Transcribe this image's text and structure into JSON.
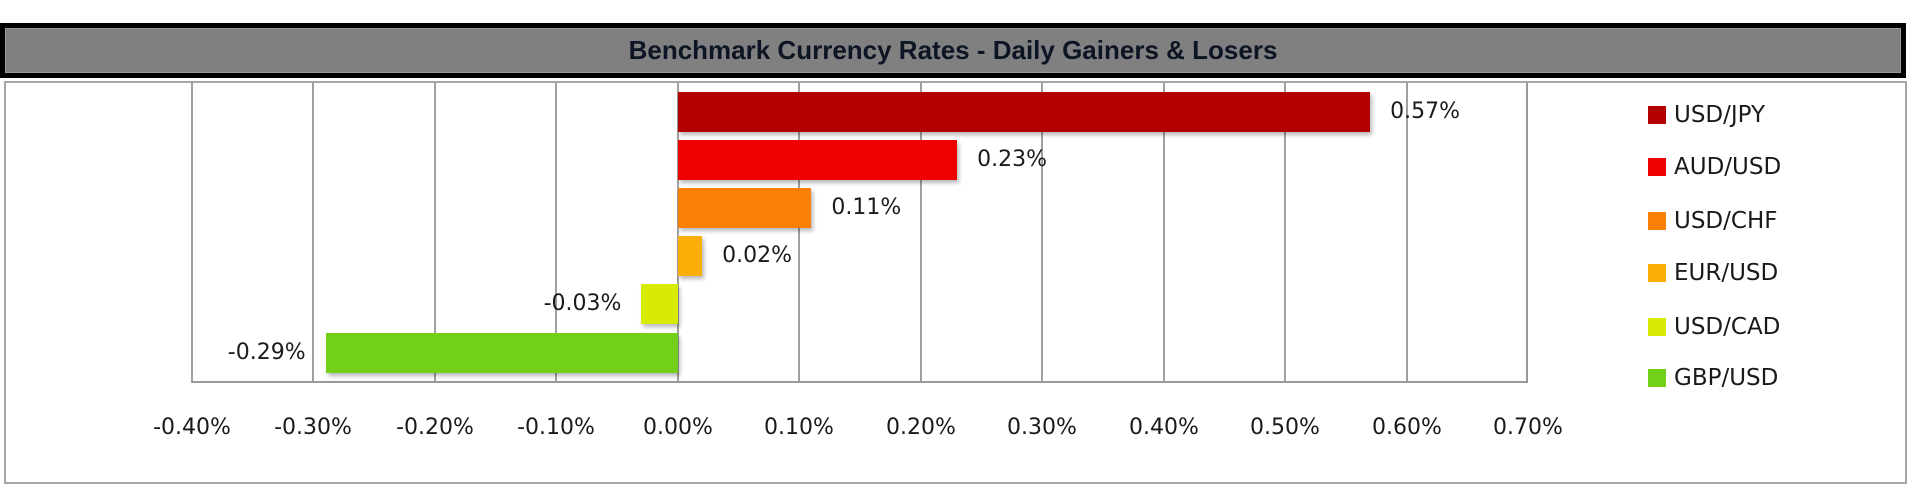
{
  "title": "Benchmark Currency Rates - Daily Gainers & Losers",
  "axis": {
    "ticks": [
      "-0.40%",
      "-0.30%",
      "-0.20%",
      "-0.10%",
      "0.00%",
      "0.10%",
      "0.20%",
      "0.30%",
      "0.40%",
      "0.50%",
      "0.60%",
      "0.70%"
    ]
  },
  "series": [
    {
      "name": "USD/JPY",
      "value": 0.57,
      "label": "0.57%",
      "color": "#B30000"
    },
    {
      "name": "AUD/USD",
      "value": 0.23,
      "label": "0.23%",
      "color": "#EE0000"
    },
    {
      "name": "USD/CHF",
      "value": 0.11,
      "label": "0.11%",
      "color": "#F98006"
    },
    {
      "name": "EUR/USD",
      "value": 0.02,
      "label": "0.02%",
      "color": "#FAAF08"
    },
    {
      "name": "USD/CAD",
      "value": -0.03,
      "label": "-0.03%",
      "color": "#D8EB06"
    },
    {
      "name": "GBP/USD",
      "value": -0.29,
      "label": "-0.29%",
      "color": "#72D01A"
    }
  ],
  "chart_data": {
    "type": "bar",
    "orientation": "horizontal",
    "title": "Benchmark Currency Rates - Daily Gainers & Losers",
    "categories": [
      "USD/JPY",
      "AUD/USD",
      "USD/CHF",
      "EUR/USD",
      "USD/CAD",
      "GBP/USD"
    ],
    "values": [
      0.57,
      0.23,
      0.11,
      0.02,
      -0.03,
      -0.29
    ],
    "value_labels": [
      "0.57%",
      "0.23%",
      "0.11%",
      "0.02%",
      "-0.03%",
      "-0.29%"
    ],
    "colors": [
      "#B30000",
      "#EE0000",
      "#F98006",
      "#FAAF08",
      "#D8EB06",
      "#72D01A"
    ],
    "xlabel": "",
    "ylabel": "",
    "xlim": [
      -0.4,
      0.7
    ],
    "x_ticks": [
      "-0.40%",
      "-0.30%",
      "-0.20%",
      "-0.10%",
      "0.00%",
      "0.10%",
      "0.20%",
      "0.30%",
      "0.40%",
      "0.50%",
      "0.60%",
      "0.70%"
    ],
    "grid": "vertical",
    "legend_position": "right",
    "legend": [
      "USD/JPY",
      "AUD/USD",
      "USD/CHF",
      "EUR/USD",
      "USD/CAD",
      "GBP/USD"
    ]
  }
}
